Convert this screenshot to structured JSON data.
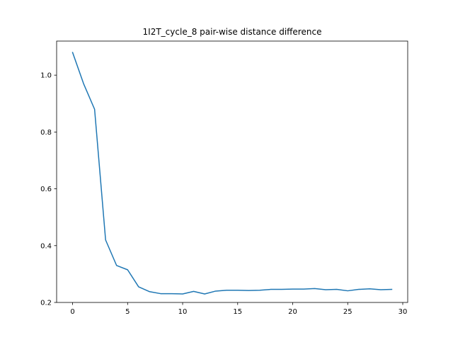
{
  "chart_data": {
    "type": "line",
    "title": "1I2T_cycle_8 pair-wise distance difference",
    "xlabel": "",
    "ylabel": "",
    "xlim": [
      -1.45,
      30.45
    ],
    "ylim": [
      0.2,
      1.12
    ],
    "xticks": [
      0,
      5,
      10,
      15,
      20,
      25,
      30
    ],
    "yticks": [
      0.2,
      0.4,
      0.6,
      0.8,
      1.0
    ],
    "xtick_labels": [
      "0",
      "5",
      "10",
      "15",
      "20",
      "25",
      "30"
    ],
    "ytick_labels": [
      "0.2",
      "0.4",
      "0.6",
      "0.8",
      "1.0"
    ],
    "grid": false,
    "legend": "none",
    "series": [
      {
        "color": "#1f77b4",
        "x": [
          0,
          1,
          2,
          3,
          4,
          5,
          6,
          7,
          8,
          9,
          10,
          11,
          12,
          13,
          14,
          15,
          16,
          17,
          18,
          19,
          20,
          21,
          22,
          23,
          24,
          25,
          26,
          27,
          28,
          29
        ],
        "y": [
          1.08,
          0.97,
          0.88,
          0.42,
          0.33,
          0.315,
          0.255,
          0.238,
          0.231,
          0.231,
          0.23,
          0.239,
          0.23,
          0.24,
          0.243,
          0.243,
          0.242,
          0.243,
          0.246,
          0.246,
          0.247,
          0.247,
          0.249,
          0.245,
          0.246,
          0.241,
          0.246,
          0.248,
          0.245,
          0.246
        ]
      }
    ]
  }
}
